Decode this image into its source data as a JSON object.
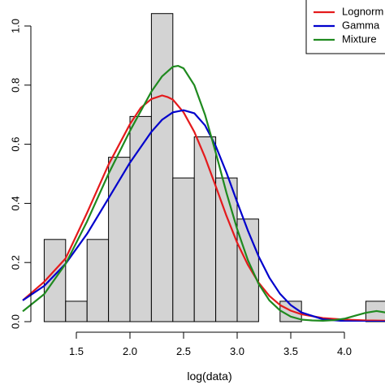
{
  "chart_data": {
    "type": "histogram",
    "title": "",
    "xlabel": "log(data)",
    "ylabel": "",
    "xlim": [
      1.2,
      4.4
    ],
    "ylim": [
      0.0,
      1.04
    ],
    "x_ticks": [
      1.5,
      2.0,
      2.5,
      3.0,
      3.5,
      4.0
    ],
    "x_tick_labels": [
      "1.5",
      "2.0",
      "2.5",
      "3.0",
      "3.5",
      "4.0"
    ],
    "y_ticks": [
      0.0,
      0.2,
      0.4,
      0.6,
      0.8,
      1.0
    ],
    "y_tick_labels": [
      "0.0",
      "0.2",
      "0.4",
      "0.6",
      "0.8",
      "1.0"
    ],
    "bar_fill": "#d3d3d3",
    "bar_stroke": "#000000",
    "bins": [
      {
        "x0": 1.2,
        "x1": 1.4,
        "density": 0.278
      },
      {
        "x0": 1.4,
        "x1": 1.6,
        "density": 0.069
      },
      {
        "x0": 1.6,
        "x1": 1.8,
        "density": 0.278
      },
      {
        "x0": 1.8,
        "x1": 2.0,
        "density": 0.556
      },
      {
        "x0": 2.0,
        "x1": 2.2,
        "density": 0.694
      },
      {
        "x0": 2.2,
        "x1": 2.4,
        "density": 1.042
      },
      {
        "x0": 2.4,
        "x1": 2.6,
        "density": 0.486
      },
      {
        "x0": 2.6,
        "x1": 2.8,
        "density": 0.625
      },
      {
        "x0": 2.8,
        "x1": 3.0,
        "density": 0.486
      },
      {
        "x0": 3.0,
        "x1": 3.2,
        "density": 0.347
      },
      {
        "x0": 3.2,
        "x1": 3.4,
        "density": 0.0
      },
      {
        "x0": 3.4,
        "x1": 3.6,
        "density": 0.069
      },
      {
        "x0": 3.6,
        "x1": 3.8,
        "density": 0.0
      },
      {
        "x0": 3.8,
        "x1": 4.0,
        "density": 0.0
      },
      {
        "x0": 4.0,
        "x1": 4.2,
        "density": 0.0
      },
      {
        "x0": 4.2,
        "x1": 4.4,
        "density": 0.069
      }
    ],
    "series": [
      {
        "name": "Lognormal",
        "color": "#e41a1c",
        "x": [
          1.0,
          1.2,
          1.4,
          1.6,
          1.8,
          2.0,
          2.1,
          2.2,
          2.3,
          2.35,
          2.4,
          2.5,
          2.6,
          2.7,
          2.8,
          2.9,
          3.0,
          3.1,
          3.2,
          3.3,
          3.4,
          3.5,
          3.6,
          3.8,
          4.0,
          4.2,
          4.4
        ],
        "y": [
          0.072,
          0.135,
          0.214,
          0.368,
          0.531,
          0.668,
          0.723,
          0.753,
          0.765,
          0.76,
          0.751,
          0.708,
          0.642,
          0.556,
          0.458,
          0.358,
          0.267,
          0.192,
          0.132,
          0.087,
          0.056,
          0.037,
          0.025,
          0.012,
          0.007,
          0.004,
          0.003
        ]
      },
      {
        "name": "Gamma",
        "color": "#0000cc",
        "x": [
          1.0,
          1.2,
          1.4,
          1.6,
          1.8,
          2.0,
          2.2,
          2.3,
          2.4,
          2.5,
          2.6,
          2.7,
          2.8,
          2.9,
          3.0,
          3.1,
          3.2,
          3.3,
          3.4,
          3.5,
          3.6,
          3.8,
          4.0,
          4.2,
          4.4
        ],
        "y": [
          0.072,
          0.121,
          0.196,
          0.297,
          0.417,
          0.538,
          0.642,
          0.683,
          0.708,
          0.715,
          0.705,
          0.664,
          0.594,
          0.504,
          0.404,
          0.308,
          0.221,
          0.149,
          0.094,
          0.056,
          0.031,
          0.008,
          0.002,
          0.0,
          0.0
        ]
      },
      {
        "name": "Mixture",
        "color": "#1f8a1f",
        "x": [
          1.0,
          1.2,
          1.4,
          1.6,
          1.8,
          2.0,
          2.2,
          2.3,
          2.4,
          2.45,
          2.5,
          2.6,
          2.7,
          2.8,
          2.9,
          3.0,
          3.1,
          3.2,
          3.3,
          3.4,
          3.5,
          3.6,
          3.7,
          3.8,
          3.9,
          4.0,
          4.1,
          4.2,
          4.3,
          4.4
        ],
        "y": [
          0.035,
          0.093,
          0.196,
          0.339,
          0.5,
          0.645,
          0.778,
          0.83,
          0.862,
          0.865,
          0.857,
          0.8,
          0.7,
          0.572,
          0.436,
          0.313,
          0.208,
          0.128,
          0.072,
          0.038,
          0.017,
          0.007,
          0.004,
          0.003,
          0.005,
          0.01,
          0.02,
          0.03,
          0.036,
          0.03
        ]
      }
    ],
    "legend": {
      "position": "top-right",
      "entries": [
        "Lognorm",
        "Gamma",
        "Mixture"
      ]
    }
  }
}
